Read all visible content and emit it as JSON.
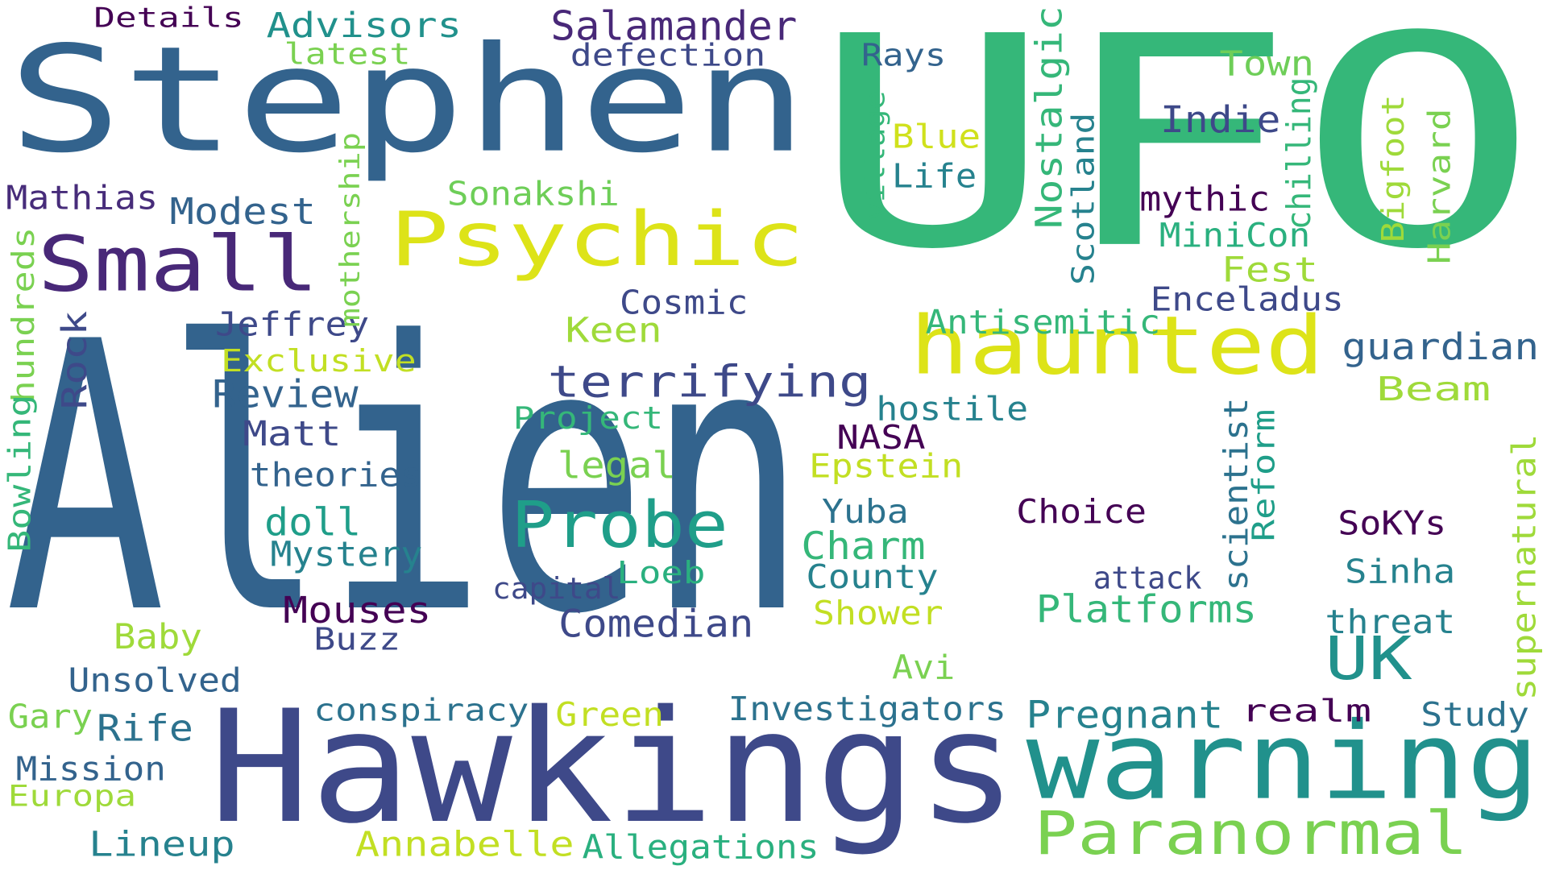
{
  "words": [
    {
      "text": "Alien",
      "color": "#33638d"
    },
    {
      "text": "UFO",
      "color": "#35b779"
    },
    {
      "text": "Stephen",
      "color": "#33638d"
    },
    {
      "text": "Hawkings",
      "color": "#3e4989"
    },
    {
      "text": "haunted",
      "color": "#dde318"
    },
    {
      "text": "warning",
      "color": "#21918c"
    },
    {
      "text": "Psychic",
      "color": "#dde318"
    },
    {
      "text": "Small",
      "color": "#482878"
    },
    {
      "text": "Paranormal",
      "color": "#7ad151"
    },
    {
      "text": "Probe",
      "color": "#1f9e89"
    },
    {
      "text": "terrifying",
      "color": "#3e4989"
    },
    {
      "text": "UK",
      "color": "#21918c"
    },
    {
      "text": "Salamander",
      "color": "#482878"
    },
    {
      "text": "Advisors",
      "color": "#21918c"
    },
    {
      "text": "Details",
      "color": "#440154"
    },
    {
      "text": "latest",
      "color": "#7ad151"
    },
    {
      "text": "defection",
      "color": "#3e4989"
    },
    {
      "text": "Rays",
      "color": "#33638d"
    },
    {
      "text": "Town",
      "color": "#6ece58"
    },
    {
      "text": "Indie",
      "color": "#3e4989"
    },
    {
      "text": "Blue",
      "color": "#d0e11c"
    },
    {
      "text": "Life",
      "color": "#26828e"
    },
    {
      "text": "Mathias",
      "color": "#472c7a"
    },
    {
      "text": "Modest",
      "color": "#33638d"
    },
    {
      "text": "Sonakshi",
      "color": "#6ece58"
    },
    {
      "text": "mythic",
      "color": "#440154"
    },
    {
      "text": "MiniCon",
      "color": "#2ab07f"
    },
    {
      "text": "Fest",
      "color": "#9fda3a"
    },
    {
      "text": "Enceladus",
      "color": "#3e4989"
    },
    {
      "text": "Cosmic",
      "color": "#3e4989"
    },
    {
      "text": "Jeffrey",
      "color": "#3e4989"
    },
    {
      "text": "Keen",
      "color": "#9fda3a"
    },
    {
      "text": "Antisemitic",
      "color": "#35b779"
    },
    {
      "text": "guardian",
      "color": "#33638d"
    },
    {
      "text": "Exclusive",
      "color": "#c2df23"
    },
    {
      "text": "Review",
      "color": "#33638d"
    },
    {
      "text": "hostile",
      "color": "#26828e"
    },
    {
      "text": "Beam",
      "color": "#9fda3a"
    },
    {
      "text": "Project",
      "color": "#35b779"
    },
    {
      "text": "Matt",
      "color": "#3e4989"
    },
    {
      "text": "NASA",
      "color": "#440154"
    },
    {
      "text": "theories",
      "color": "#33638d"
    },
    {
      "text": "legal",
      "color": "#7ad151"
    },
    {
      "text": "Epstein",
      "color": "#c2df23"
    },
    {
      "text": "doll",
      "color": "#1f9e89"
    },
    {
      "text": "Choice",
      "color": "#440154"
    },
    {
      "text": "Yuba",
      "color": "#2c728e"
    },
    {
      "text": "SoKYs",
      "color": "#440154"
    },
    {
      "text": "Mystery",
      "color": "#26828e"
    },
    {
      "text": "Charm",
      "color": "#35b779"
    },
    {
      "text": "Loeb",
      "color": "#2ab07f"
    },
    {
      "text": "County",
      "color": "#26828e"
    },
    {
      "text": "attack",
      "color": "#3e4989"
    },
    {
      "text": "Sinha",
      "color": "#26828e"
    },
    {
      "text": "capital",
      "color": "#3e4989"
    },
    {
      "text": "Mouses",
      "color": "#440154"
    },
    {
      "text": "Comedian",
      "color": "#3e4989"
    },
    {
      "text": "Platforms",
      "color": "#35b779"
    },
    {
      "text": "Shower",
      "color": "#c2df23"
    },
    {
      "text": "threat",
      "color": "#26828e"
    },
    {
      "text": "Baby",
      "color": "#9fda3a"
    },
    {
      "text": "Buzz",
      "color": "#3e4989"
    },
    {
      "text": "Unsolved",
      "color": "#33638d"
    },
    {
      "text": "Avi",
      "color": "#7ad151"
    },
    {
      "text": "Gary",
      "color": "#7ad151"
    },
    {
      "text": "Rife",
      "color": "#2c728e"
    },
    {
      "text": "conspiracy",
      "color": "#2c728e"
    },
    {
      "text": "Green",
      "color": "#c2df23"
    },
    {
      "text": "Investigators",
      "color": "#2c728e"
    },
    {
      "text": "Pregnant",
      "color": "#26828e"
    },
    {
      "text": "realm",
      "color": "#440154"
    },
    {
      "text": "Study",
      "color": "#2c728e"
    },
    {
      "text": "Mission",
      "color": "#33638d"
    },
    {
      "text": "Europa",
      "color": "#9fda3a"
    },
    {
      "text": "Lineup",
      "color": "#26828e"
    },
    {
      "text": "Annabelle",
      "color": "#c2df23"
    },
    {
      "text": "Allegations",
      "color": "#2ab07f"
    },
    {
      "text": "Nostalgic",
      "color": "#35b779"
    },
    {
      "text": "Scotland",
      "color": "#26828e"
    },
    {
      "text": "chilling",
      "color": "#35b779"
    },
    {
      "text": "Bigfoot",
      "color": "#9fda3a"
    },
    {
      "text": "Harvard",
      "color": "#7ad151"
    },
    {
      "text": "village",
      "color": "#35b779"
    },
    {
      "text": "mothership",
      "color": "#7ad151"
    },
    {
      "text": "hundreds",
      "color": "#7ad151"
    },
    {
      "text": "Rock",
      "color": "#3e4989"
    },
    {
      "text": "Bowling",
      "color": "#35b779"
    },
    {
      "text": "scientist",
      "color": "#2c728e"
    },
    {
      "text": "Reform",
      "color": "#1f9e89"
    },
    {
      "text": "supernatural",
      "color": "#9fda3a"
    }
  ]
}
